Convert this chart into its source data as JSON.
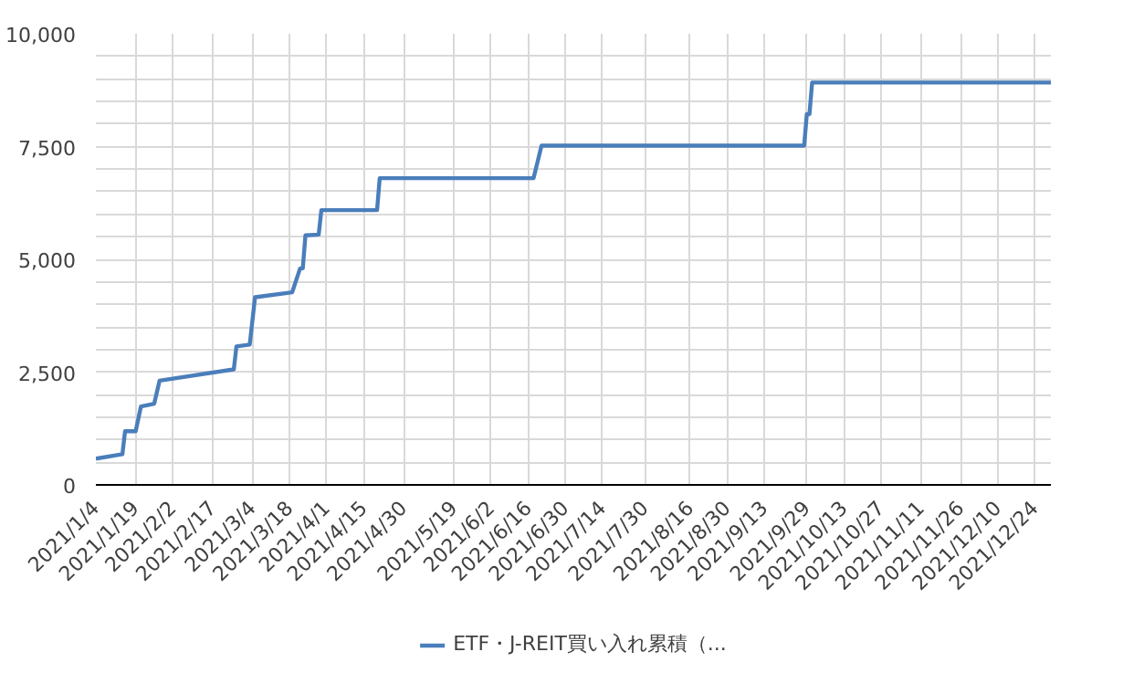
{
  "chart_data": {
    "type": "line",
    "legend": "bottom",
    "grid": true,
    "marker": "none",
    "line_style": "solid",
    "x": [
      "2021-01-04",
      "2021-01-14",
      "2021-01-15",
      "2021-01-19",
      "2021-01-21",
      "2021-01-26",
      "2021-01-28",
      "2021-02-25",
      "2021-02-26",
      "2021-03-03",
      "2021-03-05",
      "2021-03-19",
      "2021-03-22",
      "2021-03-23",
      "2021-03-24",
      "2021-03-29",
      "2021-03-30",
      "2021-04-20",
      "2021-04-21",
      "2021-06-18",
      "2021-06-21",
      "2021-09-28",
      "2021-09-29",
      "2021-09-30",
      "2021-10-01",
      "2021-12-30"
    ],
    "series": [
      {
        "name": "ETF・J-REIT買い入れ累積（...",
        "color": "#4a7ebb",
        "values": [
          580,
          680,
          1190,
          1190,
          1740,
          1800,
          2310,
          2560,
          3070,
          3110,
          4160,
          4270,
          4800,
          4800,
          5530,
          5550,
          6090,
          6090,
          6800,
          6800,
          7520,
          7520,
          8220,
          8220,
          8920,
          8920
        ]
      }
    ],
    "xlim": [
      "2021-01-04",
      "2021-12-30"
    ],
    "xticks": [
      {
        "value": "2021-01-04",
        "label": "2021/1/4"
      },
      {
        "value": "2021-01-19",
        "label": "2021/1/19"
      },
      {
        "value": "2021-02-02",
        "label": "2021/2/2"
      },
      {
        "value": "2021-02-17",
        "label": "2021/2/17"
      },
      {
        "value": "2021-03-04",
        "label": "2021/3/4"
      },
      {
        "value": "2021-03-18",
        "label": "2021/3/18"
      },
      {
        "value": "2021-04-01",
        "label": "2021/4/1"
      },
      {
        "value": "2021-04-15",
        "label": "2021/4/15"
      },
      {
        "value": "2021-04-30",
        "label": "2021/4/30"
      },
      {
        "value": "2021-05-19",
        "label": "2021/5/19"
      },
      {
        "value": "2021-06-02",
        "label": "2021/6/2"
      },
      {
        "value": "2021-06-16",
        "label": "2021/6/16"
      },
      {
        "value": "2021-06-30",
        "label": "2021/6/30"
      },
      {
        "value": "2021-07-14",
        "label": "2021/7/14"
      },
      {
        "value": "2021-07-30",
        "label": "2021/7/30"
      },
      {
        "value": "2021-08-16",
        "label": "2021/8/16"
      },
      {
        "value": "2021-08-30",
        "label": "2021/8/30"
      },
      {
        "value": "2021-09-13",
        "label": "2021/9/13"
      },
      {
        "value": "2021-09-29",
        "label": "2021/9/29"
      },
      {
        "value": "2021-10-13",
        "label": "2021/10/13"
      },
      {
        "value": "2021-10-27",
        "label": "2021/10/27"
      },
      {
        "value": "2021-11-11",
        "label": "2021/11/11"
      },
      {
        "value": "2021-11-26",
        "label": "2021/11/26"
      },
      {
        "value": "2021-12-10",
        "label": "2021/12/10"
      },
      {
        "value": "2021-12-24",
        "label": "2021/12/24"
      }
    ],
    "ylim": [
      0,
      10000
    ],
    "yticks": [
      {
        "value": 0,
        "label": "0"
      },
      {
        "value": 500,
        "label": null
      },
      {
        "value": 1000,
        "label": null
      },
      {
        "value": 1500,
        "label": null
      },
      {
        "value": 2000,
        "label": null
      },
      {
        "value": 2500,
        "label": "2,500"
      },
      {
        "value": 3000,
        "label": null
      },
      {
        "value": 3500,
        "label": null
      },
      {
        "value": 4000,
        "label": null
      },
      {
        "value": 4500,
        "label": null
      },
      {
        "value": 5000,
        "label": "5,000"
      },
      {
        "value": 5500,
        "label": null
      },
      {
        "value": 6000,
        "label": null
      },
      {
        "value": 6500,
        "label": null
      },
      {
        "value": 7000,
        "label": null
      },
      {
        "value": 7500,
        "label": "7,500"
      },
      {
        "value": 8000,
        "label": null
      },
      {
        "value": 8500,
        "label": null
      },
      {
        "value": 9000,
        "label": null
      },
      {
        "value": 9500,
        "label": null
      },
      {
        "value": 10000,
        "label": "10,000"
      }
    ]
  }
}
